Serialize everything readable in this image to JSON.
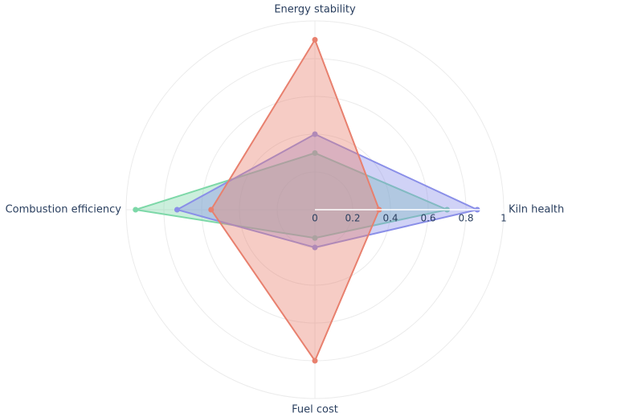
{
  "chart_data": {
    "type": "radar",
    "categories": [
      "Kiln health",
      "Energy stability",
      "Combustion efficiency",
      "Fuel cost"
    ],
    "series": [
      {
        "color": "#7dd8a8",
        "values": [
          0.7,
          0.3,
          0.95,
          0.15
        ]
      },
      {
        "color": "#8a8fe8",
        "values": [
          0.86,
          0.4,
          0.73,
          0.2
        ]
      },
      {
        "color": "#e8806e",
        "values": [
          0.34,
          0.9,
          0.55,
          0.8
        ]
      }
    ],
    "ylim": [
      0,
      1
    ],
    "yticks": [
      0,
      0.2,
      0.4,
      0.6,
      0.8,
      1
    ],
    "grid": true
  }
}
